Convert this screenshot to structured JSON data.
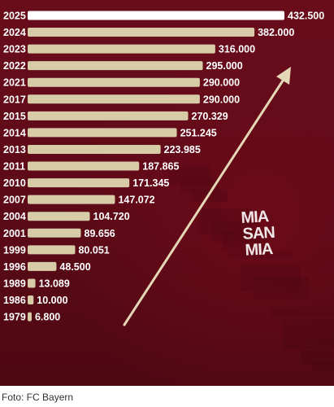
{
  "chart_data": {
    "type": "bar",
    "orientation": "horizontal",
    "categories": [
      "2025",
      "2024",
      "2023",
      "2022",
      "2021",
      "2017",
      "2015",
      "2014",
      "2013",
      "2011",
      "2010",
      "2007",
      "2004",
      "2001",
      "1999",
      "1996",
      "1989",
      "1986",
      "1979"
    ],
    "values": [
      432500,
      382000,
      316000,
      295000,
      290000,
      290000,
      270329,
      251245,
      223985,
      187865,
      171345,
      147072,
      104720,
      89656,
      80051,
      48500,
      13089,
      10000,
      6800
    ],
    "value_labels": [
      "432.500",
      "382.000",
      "316.000",
      "295.000",
      "290.000",
      "290.000",
      "270.329",
      "251.245",
      "223.985",
      "187.865",
      "171.345",
      "147.072",
      "104.720",
      "89.656",
      "80.051",
      "48.500",
      "13.089",
      "10.000",
      "6.800"
    ],
    "highlight_category": "2025",
    "colors": {
      "bar": "#d8cba8",
      "highlight": "#ffffff",
      "background": "#5e0a18",
      "text": "#ffffff",
      "arrow": "#e5d8b6"
    },
    "watermark": "MIA SAN MIA"
  },
  "caption": "Foto: FC Bayern"
}
